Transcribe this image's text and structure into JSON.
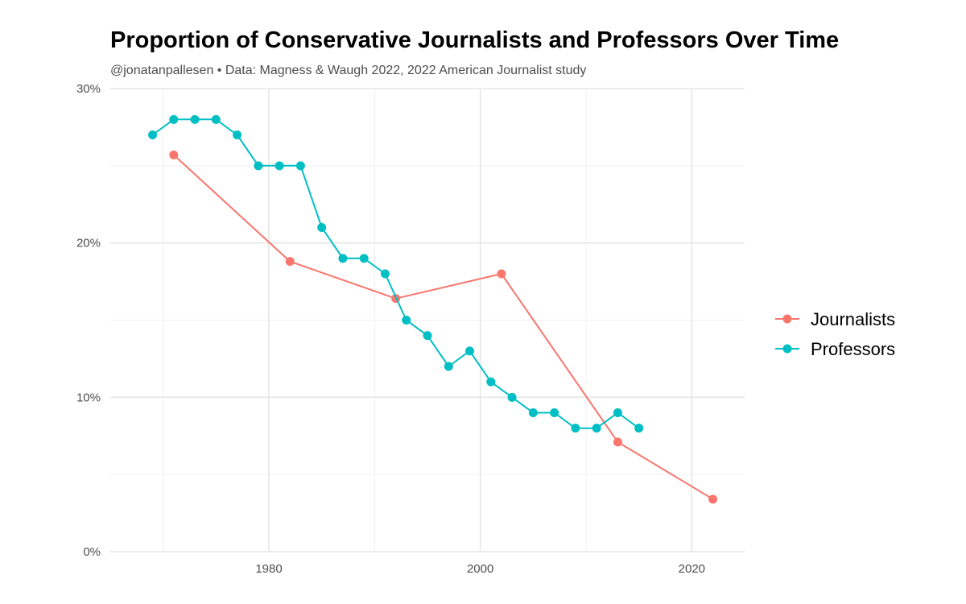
{
  "chart_data": {
    "type": "line",
    "title": "Proportion of Conservative Journalists and Professors Over Time",
    "subtitle": "@jonatanpallesen • Data: Magness & Waugh 2022, 2022 American Journalist study",
    "xlabel": "",
    "ylabel": "",
    "xlim": [
      1965,
      2025
    ],
    "ylim": [
      0,
      30
    ],
    "x_ticks": [
      1980,
      2000,
      2020
    ],
    "x_tick_labels": [
      "1980",
      "2000",
      "2020"
    ],
    "x_minor_ticks": [
      1970,
      1990,
      2010
    ],
    "y_ticks": [
      0,
      10,
      20,
      30
    ],
    "y_tick_labels": [
      "0%",
      "10%",
      "20%",
      "30%"
    ],
    "y_minor_ticks": [
      5,
      15,
      25
    ],
    "grid": true,
    "legend_position": "right",
    "series": [
      {
        "name": "Journalists",
        "color": "#F8766D",
        "x": [
          1971,
          1982,
          1992,
          2002,
          2013,
          2022
        ],
        "values": [
          25.7,
          18.8,
          16.4,
          18.0,
          7.1,
          3.4
        ]
      },
      {
        "name": "Professors",
        "color": "#00BFC4",
        "x": [
          1969,
          1971,
          1973,
          1975,
          1977,
          1979,
          1981,
          1983,
          1985,
          1987,
          1989,
          1991,
          1993,
          1995,
          1997,
          1999,
          2001,
          2003,
          2005,
          2007,
          2009,
          2011,
          2013,
          2015
        ],
        "values": [
          27,
          28,
          28,
          28,
          27,
          25,
          25,
          25,
          21,
          19,
          19,
          18,
          15,
          14,
          12,
          13,
          11,
          10,
          9,
          9,
          8,
          8,
          9,
          8
        ]
      }
    ]
  }
}
